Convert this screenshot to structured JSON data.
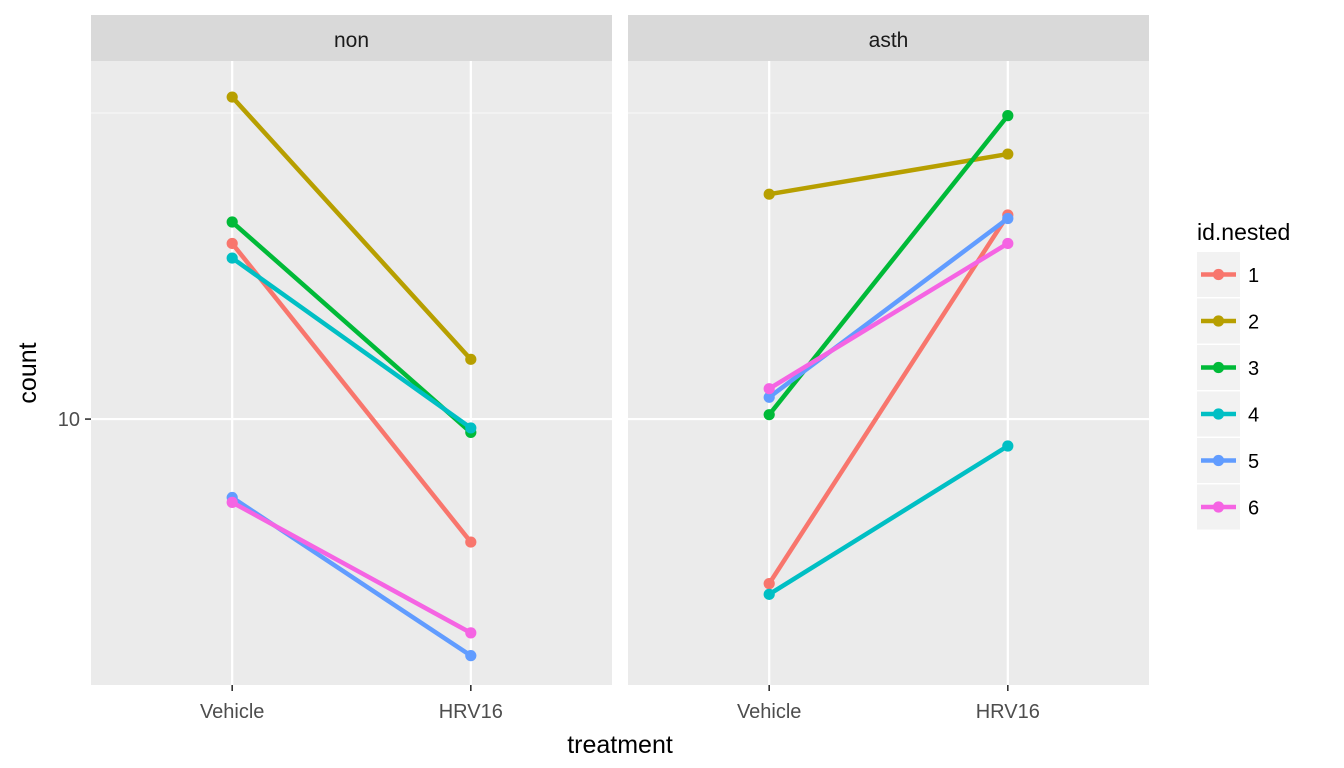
{
  "chart_data": {
    "type": "line",
    "log_scale_y": true,
    "xlabel": "treatment",
    "ylabel": "count",
    "categories": [
      "Vehicle",
      "HRV16"
    ],
    "y_ticks": [
      {
        "value": 10,
        "label": "10"
      }
    ],
    "ylim": [
      7.4,
      15.0
    ],
    "legend": {
      "title": "id.nested",
      "position": "right",
      "entries": [
        {
          "label": "1",
          "color": "#F8766D"
        },
        {
          "label": "2",
          "color": "#B79F00"
        },
        {
          "label": "3",
          "color": "#00BA38"
        },
        {
          "label": "4",
          "color": "#00BFC4"
        },
        {
          "label": "5",
          "color": "#619CFF"
        },
        {
          "label": "6",
          "color": "#F564E3"
        }
      ]
    },
    "panels": [
      {
        "label": "non",
        "series": [
          {
            "id": "1",
            "values": [
              12.2,
              8.7
            ]
          },
          {
            "id": "2",
            "values": [
              14.4,
              10.7
            ]
          },
          {
            "id": "3",
            "values": [
              12.5,
              9.85
            ]
          },
          {
            "id": "4",
            "values": [
              12.0,
              9.9
            ]
          },
          {
            "id": "5",
            "values": [
              9.15,
              7.65
            ]
          },
          {
            "id": "6",
            "values": [
              9.1,
              7.85
            ]
          }
        ]
      },
      {
        "label": "asth",
        "series": [
          {
            "id": "1",
            "values": [
              8.3,
              12.6
            ]
          },
          {
            "id": "2",
            "values": [
              12.9,
              13.5
            ]
          },
          {
            "id": "3",
            "values": [
              10.05,
              14.1
            ]
          },
          {
            "id": "4",
            "values": [
              8.2,
              9.7
            ]
          },
          {
            "id": "5",
            "values": [
              10.25,
              12.55
            ]
          },
          {
            "id": "6",
            "values": [
              10.35,
              12.2
            ]
          }
        ]
      }
    ]
  }
}
